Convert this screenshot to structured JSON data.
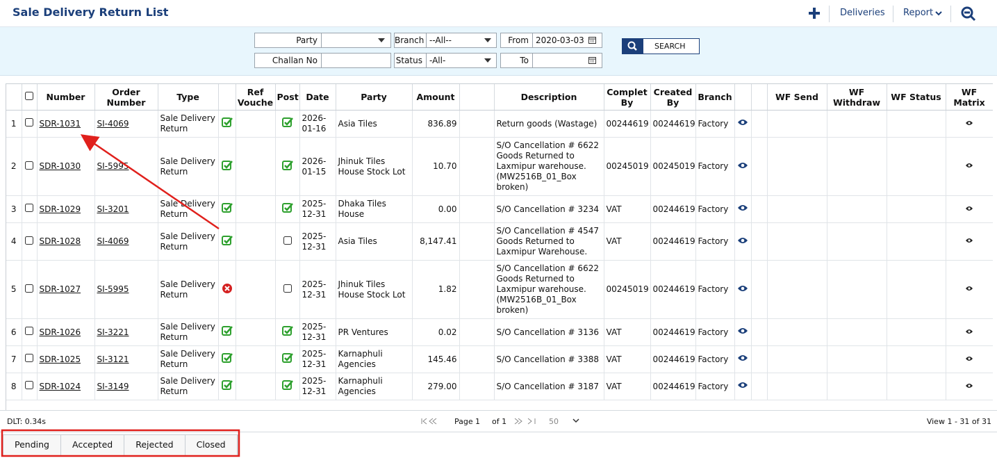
{
  "header": {
    "title": "Sale Delivery Return List",
    "actions": [
      "Deliveries",
      "Report"
    ]
  },
  "filters": [
    {
      "label": "Party"
    },
    {
      "label": "Branch",
      "value": "--All--"
    },
    {
      "label": "From",
      "value": "2020-03-03"
    },
    {
      "label": "Challan No"
    },
    {
      "label": "Status",
      "value": "-All-"
    },
    {
      "label": "To"
    }
  ],
  "search": "SEARCH",
  "table": {
    "columns": [
      "Number",
      "Order Number",
      "Type",
      "Ref Vouche",
      "Post",
      "Date",
      "Party",
      "Amount",
      "Description",
      "Complet By",
      "Created By",
      "Branch",
      "WF Send",
      "WF Withdraw",
      "WF Status",
      "WF Matrix"
    ],
    "rows": [
      {
        "no": 1,
        "number": "SDR-1031",
        "order": "SI-4069",
        "type": "Sale Delivery Return",
        "type_ok": true,
        "posted": true,
        "date": "2026-01-16",
        "party": "Asia Tiles",
        "amount": "836.89",
        "description": "Return goods (Wastage)",
        "completed_by": "00244619",
        "created_by": "00244619",
        "branch": "Factory"
      },
      {
        "no": 2,
        "number": "SDR-1030",
        "order": "SI-5995",
        "type": "Sale Delivery Return",
        "type_ok": true,
        "posted": true,
        "date": "2026-01-15",
        "party": "Jhinuk Tiles House Stock Lot",
        "amount": "10.70",
        "description": "S/O Cancellation # 6622 Goods Returned to Laxmipur warehouse. (MW2516B_01_Box broken)",
        "completed_by": "00245019",
        "created_by": "00245019",
        "branch": "Factory"
      },
      {
        "no": 3,
        "number": "SDR-1029",
        "order": "SI-3201",
        "type": "Sale Delivery Return",
        "type_ok": true,
        "posted": true,
        "date": "2025-12-31",
        "party": "Dhaka Tiles House",
        "amount": "0.00",
        "description": "S/O Cancellation # 3234",
        "completed_by": "VAT",
        "created_by": "00244619",
        "branch": "Factory"
      },
      {
        "no": 4,
        "number": "SDR-1028",
        "order": "SI-4069",
        "type": "Sale Delivery Return",
        "type_ok": true,
        "posted": false,
        "date": "2025-12-31",
        "party": "Asia Tiles",
        "amount": "8,147.41",
        "description": "S/O Cancellation # 4547 Goods Returned to Laxmipur Warehouse.",
        "completed_by": "VAT",
        "created_by": "00244619",
        "branch": "Factory"
      },
      {
        "no": 5,
        "number": "SDR-1027",
        "order": "SI-5995",
        "type": "Sale Delivery Return",
        "type_ok": false,
        "posted": false,
        "date": "2025-12-31",
        "party": "Jhinuk Tiles House Stock Lot",
        "amount": "1.82",
        "description": "S/O Cancellation # 6622 Goods Returned to Laxmipur warehouse. (MW2516B_01_Box broken)",
        "completed_by": "00245019",
        "created_by": "00244619",
        "branch": "Factory"
      },
      {
        "no": 6,
        "number": "SDR-1026",
        "order": "SI-3221",
        "type": "Sale Delivery Return",
        "type_ok": true,
        "posted": true,
        "date": "2025-12-31",
        "party": "PR Ventures",
        "amount": "0.02",
        "description": "S/O Cancellation # 3136",
        "completed_by": "VAT",
        "created_by": "00244619",
        "branch": "Factory"
      },
      {
        "no": 7,
        "number": "SDR-1025",
        "order": "SI-3121",
        "type": "Sale Delivery Return",
        "type_ok": true,
        "posted": true,
        "date": "2025-12-31",
        "party": "Karnaphuli Agencies",
        "amount": "145.46",
        "description": "S/O Cancellation # 3388",
        "completed_by": "VAT",
        "created_by": "00244619",
        "branch": "Factory"
      },
      {
        "no": 8,
        "number": "SDR-1024",
        "order": "SI-3149",
        "type": "Sale Delivery Return",
        "type_ok": true,
        "posted": true,
        "date": "2025-12-31",
        "party": "Karnaphuli Agencies",
        "amount": "279.00",
        "description": "S/O Cancellation # 3187",
        "completed_by": "VAT",
        "created_by": "00244619",
        "branch": "Factory"
      }
    ]
  },
  "footer": {
    "dlt": "DLT: 0.34s",
    "page_label": "Page",
    "page": "1",
    "of": "of 1",
    "size": "50",
    "view": "View 1 - 31 of 31"
  },
  "tabs": [
    "Pending",
    "Accepted",
    "Rejected",
    "Closed"
  ]
}
